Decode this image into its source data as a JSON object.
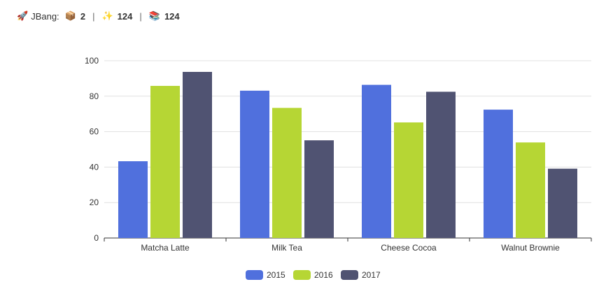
{
  "toolbar": {
    "app_label": "JBang:",
    "rocket_emoji": "🚀",
    "package_emoji": "📦",
    "sparkle_emoji": "✨",
    "books_emoji": "📚",
    "package_count": "2",
    "sparkle_count": "124",
    "books_count": "124",
    "separator": "|"
  },
  "chart_data": {
    "type": "bar",
    "categories": [
      "Matcha Latte",
      "Milk Tea",
      "Cheese Cocoa",
      "Walnut Brownie"
    ],
    "series": [
      {
        "name": "2015",
        "color": "#5070dd",
        "values": [
          43.3,
          83.1,
          86.4,
          72.4
        ]
      },
      {
        "name": "2016",
        "color": "#b6d634",
        "values": [
          85.8,
          73.4,
          65.2,
          53.9
        ]
      },
      {
        "name": "2017",
        "color": "#505372",
        "values": [
          93.7,
          55.1,
          82.5,
          39.1
        ]
      }
    ],
    "ylim": [
      0,
      100
    ],
    "yticks": [
      0,
      20,
      40,
      60,
      80,
      100
    ],
    "grid": true,
    "legend_position": "bottom-center"
  }
}
